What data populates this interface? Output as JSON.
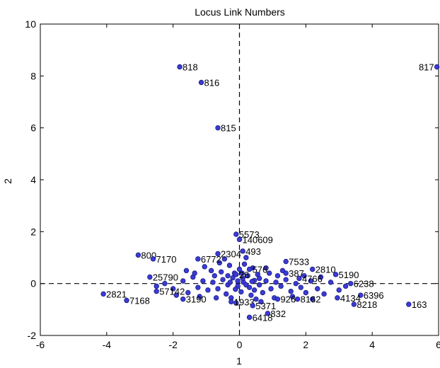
{
  "chart_data": {
    "type": "scatter",
    "title": "Locus Link Numbers",
    "xlabel": "1",
    "ylabel": "2",
    "xlim": [
      -6,
      6
    ],
    "ylim": [
      -2,
      10
    ],
    "xticks": [
      "-6",
      "-4",
      "-2",
      "0",
      "2",
      "4",
      "6"
    ],
    "yticks": [
      "-2",
      "0",
      "2",
      "4",
      "6",
      "8",
      "10"
    ],
    "grid": false,
    "reference_lines": {
      "x": 0,
      "y": 0,
      "style": "dashed"
    },
    "marker_color": "#3b3bd6",
    "labeled_points": [
      {
        "label": "817",
        "x": 5.95,
        "y": 8.35
      },
      {
        "label": "818",
        "x": -1.8,
        "y": 8.35
      },
      {
        "label": "816",
        "x": -1.15,
        "y": 7.75
      },
      {
        "label": "815",
        "x": -0.65,
        "y": 6.0
      },
      {
        "label": "5573",
        "x": -0.1,
        "y": 1.9
      },
      {
        "label": "140609",
        "x": 0.0,
        "y": 1.7
      },
      {
        "label": "493",
        "x": 0.1,
        "y": 1.25
      },
      {
        "label": "800",
        "x": -3.05,
        "y": 1.1
      },
      {
        "label": "2304",
        "x": -0.65,
        "y": 1.15
      },
      {
        "label": "7170",
        "x": -2.6,
        "y": 0.95
      },
      {
        "label": "6772",
        "x": -1.25,
        "y": 0.95
      },
      {
        "label": "7533",
        "x": 1.4,
        "y": 0.85
      },
      {
        "label": "2810",
        "x": 2.2,
        "y": 0.55
      },
      {
        "label": "26",
        "x": -0.1,
        "y": 0.35
      },
      {
        "label": "576",
        "x": 0.3,
        "y": 0.55
      },
      {
        "label": "387",
        "x": 1.4,
        "y": 0.4
      },
      {
        "label": "4766",
        "x": 1.8,
        "y": 0.2
      },
      {
        "label": "5190",
        "x": 2.9,
        "y": 0.35
      },
      {
        "label": "25790",
        "x": -2.7,
        "y": 0.25
      },
      {
        "label": "6238",
        "x": 3.35,
        "y": 0.0
      },
      {
        "label": "57142",
        "x": -2.5,
        "y": -0.3
      },
      {
        "label": "2821",
        "x": -4.1,
        "y": -0.4
      },
      {
        "label": "7168",
        "x": -3.4,
        "y": -0.65
      },
      {
        "label": "3190",
        "x": -1.7,
        "y": -0.6
      },
      {
        "label": "6396",
        "x": 3.65,
        "y": -0.45
      },
      {
        "label": "4134",
        "x": 2.95,
        "y": -0.55
      },
      {
        "label": "8218",
        "x": 3.45,
        "y": -0.8
      },
      {
        "label": "163",
        "x": 5.1,
        "y": -0.8
      },
      {
        "label": "1933",
        "x": -0.25,
        "y": -0.7
      },
      {
        "label": "5371",
        "x": 0.4,
        "y": -0.85
      },
      {
        "label": "832",
        "x": 0.85,
        "y": -1.15
      },
      {
        "label": "6418",
        "x": 0.3,
        "y": -1.3
      },
      {
        "label": "8162",
        "x": 1.75,
        "y": -0.6
      },
      {
        "label": "926",
        "x": 1.15,
        "y": -0.6
      }
    ],
    "cluster_points": [
      [
        -0.05,
        -0.1
      ],
      [
        0.12,
        0.05
      ],
      [
        -0.2,
        0.22
      ],
      [
        0.3,
        -0.15
      ],
      [
        -0.35,
        -0.05
      ],
      [
        0.45,
        0.12
      ],
      [
        0.05,
        -0.32
      ],
      [
        -0.5,
        0.15
      ],
      [
        0.6,
        -0.05
      ],
      [
        -0.15,
        0.4
      ],
      [
        0.25,
        0.3
      ],
      [
        -0.65,
        -0.2
      ],
      [
        0.8,
        0.1
      ],
      [
        0.0,
        0.55
      ],
      [
        -0.4,
        -0.4
      ],
      [
        0.95,
        -0.2
      ],
      [
        -0.8,
        0.05
      ],
      [
        0.35,
        -0.45
      ],
      [
        1.1,
        0.05
      ],
      [
        -0.95,
        -0.25
      ],
      [
        0.55,
        0.35
      ],
      [
        -0.25,
        -0.55
      ],
      [
        1.25,
        -0.1
      ],
      [
        -1.1,
        0.1
      ],
      [
        0.7,
        -0.35
      ],
      [
        -0.55,
        0.45
      ],
      [
        1.4,
        0.15
      ],
      [
        -1.25,
        -0.15
      ],
      [
        0.15,
        0.75
      ],
      [
        1.55,
        -0.3
      ],
      [
        -1.4,
        0.25
      ],
      [
        0.9,
        0.4
      ],
      [
        -0.7,
        -0.55
      ],
      [
        1.7,
        0.0
      ],
      [
        -1.55,
        -0.35
      ],
      [
        0.4,
        0.6
      ],
      [
        1.85,
        -0.15
      ],
      [
        -0.3,
        0.7
      ],
      [
        2.0,
        -0.35
      ],
      [
        -1.7,
        0.1
      ],
      [
        1.05,
        -0.55
      ],
      [
        -0.85,
        0.5
      ],
      [
        2.15,
        0.1
      ],
      [
        -0.1,
        -0.75
      ],
      [
        2.35,
        -0.2
      ],
      [
        -1.2,
        -0.5
      ],
      [
        1.3,
        0.5
      ],
      [
        2.55,
        -0.4
      ],
      [
        -2.0,
        -0.2
      ],
      [
        0.65,
        -0.7
      ],
      [
        2.75,
        0.05
      ],
      [
        -0.45,
        0.95
      ],
      [
        1.6,
        -0.5
      ],
      [
        -2.25,
        0.0
      ],
      [
        3.0,
        -0.25
      ],
      [
        -1.9,
        -0.45
      ],
      [
        0.2,
        1.0
      ],
      [
        2.45,
        0.25
      ],
      [
        -1.05,
        0.65
      ],
      [
        1.95,
        0.3
      ],
      [
        -0.6,
        0.8
      ],
      [
        0.5,
        -0.6
      ],
      [
        -2.5,
        -0.1
      ],
      [
        3.2,
        -0.1
      ],
      [
        -1.6,
        0.5
      ],
      [
        0.8,
        0.6
      ],
      [
        2.2,
        -0.6
      ],
      [
        -0.35,
        0.3
      ],
      [
        0.1,
        0.2
      ],
      [
        -0.05,
        0.1
      ],
      [
        0.2,
        -0.05
      ],
      [
        0.38,
        0.08
      ],
      [
        -0.12,
        -0.22
      ],
      [
        0.6,
        0.2
      ],
      [
        -0.28,
        0.05
      ],
      [
        0.08,
        0.4
      ],
      [
        -0.75,
        0.3
      ],
      [
        1.15,
        0.3
      ],
      [
        -1.35,
        0.4
      ],
      [
        0.45,
        -0.25
      ]
    ]
  }
}
